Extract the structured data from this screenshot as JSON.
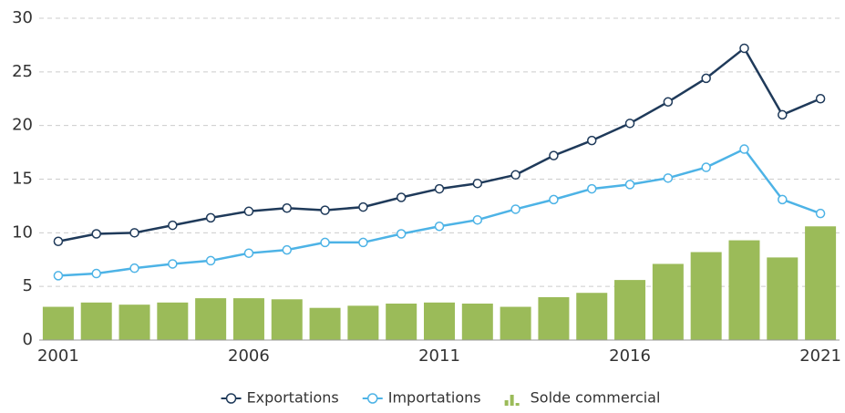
{
  "chart_data": {
    "type": "bar+line",
    "categories": [
      "2001",
      null,
      null,
      null,
      null,
      "2006",
      null,
      null,
      null,
      null,
      "2011",
      null,
      null,
      null,
      null,
      "2016",
      null,
      null,
      null,
      null,
      "2021"
    ],
    "series": [
      {
        "name": "Exportations",
        "type": "line",
        "color": "#1f3a5a",
        "values": [
          9.2,
          9.9,
          10.0,
          10.7,
          11.4,
          12.0,
          12.3,
          12.1,
          12.4,
          13.3,
          14.1,
          14.6,
          15.4,
          17.2,
          18.6,
          20.2,
          22.2,
          24.4,
          27.2,
          21.0,
          22.5
        ]
      },
      {
        "name": "Importations",
        "type": "line",
        "color": "#4db3e6",
        "values": [
          6.0,
          6.2,
          6.7,
          7.1,
          7.4,
          8.1,
          8.4,
          9.1,
          9.1,
          9.9,
          10.6,
          11.2,
          12.2,
          13.1,
          14.1,
          14.5,
          15.1,
          16.1,
          17.8,
          13.1,
          11.8
        ]
      },
      {
        "name": "Solde commercial",
        "type": "bar",
        "color": "#9bbb59",
        "values": [
          3.1,
          3.5,
          3.3,
          3.5,
          3.9,
          3.9,
          3.8,
          3.0,
          3.2,
          3.4,
          3.5,
          3.4,
          3.1,
          4.0,
          4.4,
          5.6,
          7.1,
          8.2,
          9.3,
          7.7,
          10.6
        ]
      }
    ],
    "ylim": [
      0,
      30
    ],
    "yticks": [
      0,
      5,
      10,
      15,
      20,
      25,
      30
    ],
    "grid": true,
    "legend": "bottom"
  }
}
